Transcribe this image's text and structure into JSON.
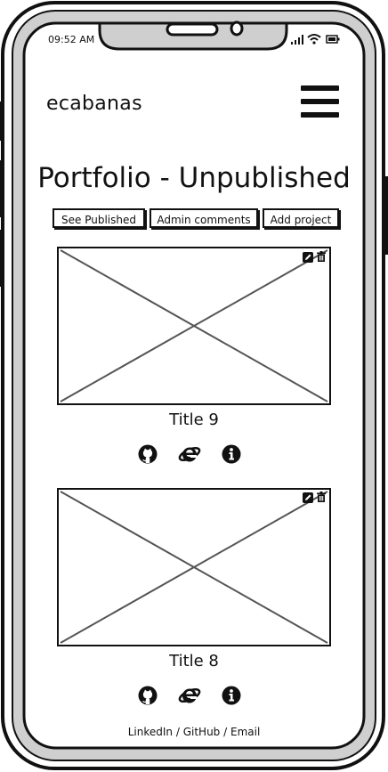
{
  "status_bar": {
    "time": "09:52 AM"
  },
  "header": {
    "brand": "ecabanas"
  },
  "page": {
    "title": "Portfolio - Unpublished"
  },
  "actions": {
    "see_published": "See Published",
    "admin_comments": "Admin comments",
    "add_project": "Add project"
  },
  "projects": [
    {
      "title": "Title 9",
      "icons": [
        "github-icon",
        "internet-explorer-icon",
        "info-icon"
      ],
      "tools": [
        "edit-icon",
        "trash-icon"
      ]
    },
    {
      "title": "Title 8",
      "icons": [
        "github-icon",
        "internet-explorer-icon",
        "info-icon"
      ],
      "tools": [
        "edit-icon",
        "trash-icon"
      ]
    }
  ],
  "footer": {
    "linkedin": "LinkedIn",
    "github": "GitHub",
    "email": "Email",
    "separator": "/"
  }
}
